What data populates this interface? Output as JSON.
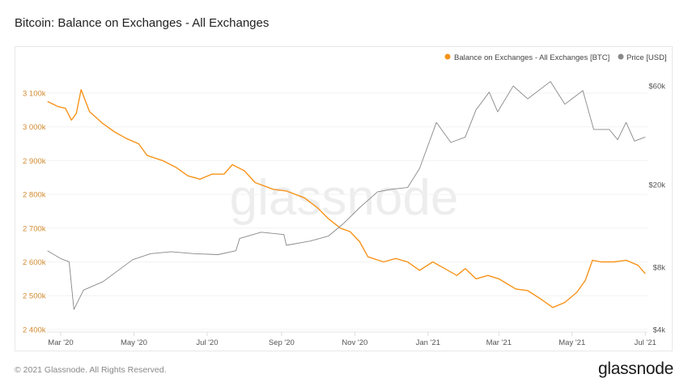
{
  "title": "Bitcoin: Balance on Exchanges - All Exchanges",
  "footer": "© 2021 Glassnode. All Rights Reserved.",
  "logo": "glassnode",
  "chart_data": {
    "type": "line",
    "title": "Bitcoin: Balance on Exchanges - All Exchanges",
    "watermark": "glassnode",
    "legend_position": "top-right",
    "grid": true,
    "x_ticks": [
      "Mar '20",
      "May '20",
      "Jul '20",
      "Sep '20",
      "Nov '20",
      "Jan '21",
      "Mar '21",
      "May '21",
      "Jul '21"
    ],
    "x_tick_dates": [
      "2020-03-01",
      "2020-05-01",
      "2020-07-01",
      "2020-09-01",
      "2020-11-01",
      "2021-01-01",
      "2021-03-01",
      "2021-05-01",
      "2021-07-01"
    ],
    "xlim": [
      "2020-02-19",
      "2021-07-02"
    ],
    "y_left": {
      "scale": "linear",
      "ylim": [
        2400,
        3150
      ],
      "ticks": [
        2400,
        2500,
        2600,
        2700,
        2800,
        2900,
        3000,
        3100
      ],
      "tick_labels": [
        "2 400k",
        "2 500k",
        "2 600k",
        "2 700k",
        "2 800k",
        "2 900k",
        "3 000k",
        "3 100k"
      ],
      "color": "#d18b30"
    },
    "y_right": {
      "scale": "log",
      "ylim": [
        4000,
        70000
      ],
      "ticks": [
        4000,
        8000,
        20000,
        60000
      ],
      "tick_labels": [
        "$4k",
        "$8k",
        "$20k",
        "$60k"
      ]
    },
    "series": [
      {
        "name": "Balance on Exchanges - All Exchanges [BTC]",
        "axis": "left",
        "color": "#f7931a",
        "unit": "k BTC",
        "x": [
          "2020-02-19",
          "2020-02-28",
          "2020-03-05",
          "2020-03-10",
          "2020-03-14",
          "2020-03-18",
          "2020-03-25",
          "2020-04-05",
          "2020-04-15",
          "2020-04-25",
          "2020-05-05",
          "2020-05-12",
          "2020-05-25",
          "2020-06-05",
          "2020-06-15",
          "2020-06-25",
          "2020-07-05",
          "2020-07-15",
          "2020-07-22",
          "2020-08-01",
          "2020-08-10",
          "2020-08-25",
          "2020-09-05",
          "2020-09-20",
          "2020-10-01",
          "2020-10-10",
          "2020-10-20",
          "2020-10-28",
          "2020-11-05",
          "2020-11-12",
          "2020-11-25",
          "2020-12-05",
          "2020-12-15",
          "2020-12-25",
          "2021-01-05",
          "2021-01-15",
          "2021-01-25",
          "2021-02-01",
          "2021-02-10",
          "2021-02-20",
          "2021-03-01",
          "2021-03-15",
          "2021-03-25",
          "2021-04-05",
          "2021-04-15",
          "2021-04-25",
          "2021-05-05",
          "2021-05-12",
          "2021-05-18",
          "2021-05-25",
          "2021-06-05",
          "2021-06-15",
          "2021-06-25",
          "2021-07-01"
        ],
        "values": [
          3075,
          3060,
          3055,
          3020,
          3040,
          3110,
          3045,
          3010,
          2985,
          2965,
          2950,
          2915,
          2900,
          2880,
          2855,
          2845,
          2860,
          2860,
          2888,
          2870,
          2835,
          2815,
          2810,
          2790,
          2760,
          2728,
          2700,
          2690,
          2660,
          2615,
          2600,
          2610,
          2600,
          2575,
          2600,
          2580,
          2560,
          2580,
          2550,
          2560,
          2550,
          2520,
          2515,
          2490,
          2465,
          2480,
          2510,
          2545,
          2605,
          2600,
          2600,
          2605,
          2590,
          2565
        ]
      },
      {
        "name": "Price [USD]",
        "axis": "right",
        "color": "#888888",
        "unit": "USD",
        "x": [
          "2020-02-19",
          "2020-03-01",
          "2020-03-08",
          "2020-03-12",
          "2020-03-20",
          "2020-04-05",
          "2020-04-30",
          "2020-05-15",
          "2020-06-01",
          "2020-06-20",
          "2020-07-10",
          "2020-07-25",
          "2020-07-28",
          "2020-08-15",
          "2020-09-03",
          "2020-09-05",
          "2020-09-25",
          "2020-10-10",
          "2020-10-22",
          "2020-11-05",
          "2020-11-20",
          "2020-12-01",
          "2020-12-15",
          "2020-12-25",
          "2021-01-08",
          "2021-01-20",
          "2021-02-01",
          "2021-02-10",
          "2021-02-21",
          "2021-02-28",
          "2021-03-13",
          "2021-03-25",
          "2021-04-13",
          "2021-04-25",
          "2021-05-10",
          "2021-05-19",
          "2021-06-01",
          "2021-06-08",
          "2021-06-15",
          "2021-06-22",
          "2021-07-01"
        ],
        "values": [
          9600,
          8800,
          8500,
          5000,
          6200,
          6800,
          8700,
          9300,
          9500,
          9300,
          9200,
          9600,
          11000,
          11800,
          11500,
          10200,
          10700,
          11300,
          12900,
          15500,
          18500,
          19000,
          19400,
          24000,
          40000,
          32000,
          34000,
          46000,
          56000,
          45000,
          60000,
          52000,
          63000,
          49000,
          57000,
          37000,
          37000,
          33000,
          40000,
          32500,
          34000
        ]
      }
    ]
  }
}
